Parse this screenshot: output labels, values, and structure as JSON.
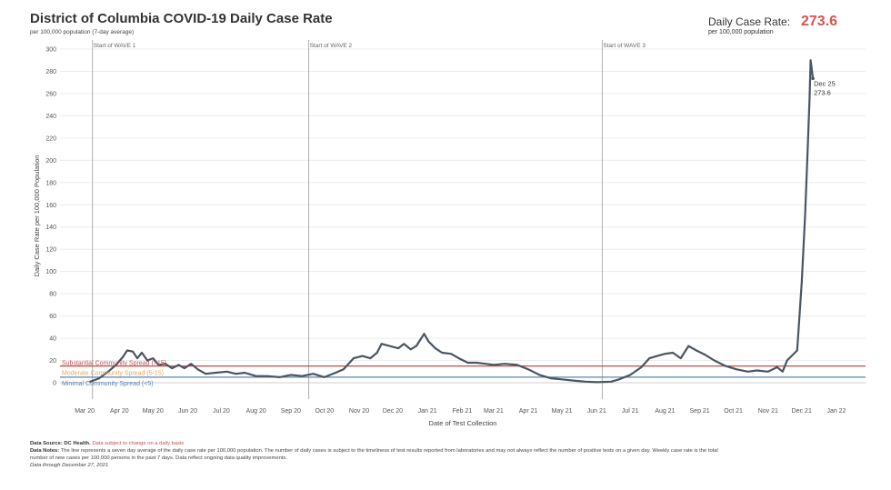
{
  "header": {
    "title": "District of Columbia COVID-19 Daily Case Rate",
    "subtitle": "per 100,000 population (7-day average)",
    "kpi_label": "Daily Case Rate:",
    "kpi_sub": "per 100,000 population",
    "kpi_value": "273.6",
    "kpi_color": "#d9534f"
  },
  "footer": {
    "source_label": "Data Source: DC Health.",
    "source_note": "Data subject to change on a daily basis",
    "notes_label": "Data Notes:",
    "notes_line1": "The line represents a seven day average of the daily case rate per 100,000 population. The number of daily cases is subject to the timeliness of test results reported from laboratories and may not always reflect the number of positive tests on a given day. Weekly case rate is the total",
    "notes_line2": "number of new cases per 100,000 persons in the past 7 days. Data reflect ongoing data quality improvements.",
    "through": "Data through December 27, 2021"
  },
  "chart_data": {
    "type": "line",
    "xlabel": "Date of Test Collection",
    "ylabel": "Daily Case Rate per 100,000 Population",
    "ylim": [
      0,
      300
    ],
    "yticks": [
      0,
      20,
      40,
      60,
      80,
      100,
      120,
      140,
      160,
      180,
      200,
      220,
      240,
      260,
      280,
      300
    ],
    "xlim": [
      "2020-02-22",
      "2022-02-10"
    ],
    "xticks": [
      {
        "date": "2020-03-15",
        "label": "Mar 20"
      },
      {
        "date": "2020-04-15",
        "label": "Apr 20"
      },
      {
        "date": "2020-05-15",
        "label": "May 20"
      },
      {
        "date": "2020-06-15",
        "label": "Jun 20"
      },
      {
        "date": "2020-07-15",
        "label": "Jul 20"
      },
      {
        "date": "2020-08-15",
        "label": "Aug 20"
      },
      {
        "date": "2020-09-15",
        "label": "Sep 20"
      },
      {
        "date": "2020-10-15",
        "label": "Oct 20"
      },
      {
        "date": "2020-11-15",
        "label": "Nov 20"
      },
      {
        "date": "2020-12-15",
        "label": "Dec 20"
      },
      {
        "date": "2021-01-15",
        "label": "Jan 21"
      },
      {
        "date": "2021-02-15",
        "label": "Feb 21"
      },
      {
        "date": "2021-03-15",
        "label": "Mar 21"
      },
      {
        "date": "2021-04-15",
        "label": "Apr 21"
      },
      {
        "date": "2021-05-15",
        "label": "May 21"
      },
      {
        "date": "2021-06-15",
        "label": "Jun 21"
      },
      {
        "date": "2021-07-15",
        "label": "Jul 21"
      },
      {
        "date": "2021-08-15",
        "label": "Aug 21"
      },
      {
        "date": "2021-09-15",
        "label": "Sep 21"
      },
      {
        "date": "2021-10-15",
        "label": "Oct 21"
      },
      {
        "date": "2021-11-15",
        "label": "Nov 21"
      },
      {
        "date": "2021-12-15",
        "label": "Dec 21"
      },
      {
        "date": "2022-01-15",
        "label": "Jan 22"
      }
    ],
    "waves": [
      {
        "date": "2020-03-22",
        "label": "Start of WAVE 1"
      },
      {
        "date": "2020-10-01",
        "label": "Start of WAVE 2"
      },
      {
        "date": "2021-06-20",
        "label": "Start of WAVE 3"
      }
    ],
    "thresholds": [
      {
        "value": 15,
        "label": "Substantial Community Spread (>15)",
        "color": "#c0504d"
      },
      {
        "value": 5,
        "label": "Moderate Community Spread (5-15)",
        "color": "#e3a85c"
      },
      {
        "value": 5,
        "label": "Minimal Community Spread (<5)",
        "color": "#5b84b1"
      }
    ],
    "annotation": {
      "date": "2021-12-25",
      "value": 273.6,
      "label_date": "Dec 25",
      "label_value": "273.6"
    },
    "line_color": "#4a5563",
    "grid": true,
    "series": [
      {
        "points": [
          [
            "2020-03-20",
            1
          ],
          [
            "2020-03-28",
            4
          ],
          [
            "2020-04-05",
            10
          ],
          [
            "2020-04-12",
            16
          ],
          [
            "2020-04-18",
            23
          ],
          [
            "2020-04-22",
            29
          ],
          [
            "2020-04-27",
            28
          ],
          [
            "2020-05-01",
            22
          ],
          [
            "2020-05-05",
            27
          ],
          [
            "2020-05-10",
            20
          ],
          [
            "2020-05-15",
            22
          ],
          [
            "2020-05-20",
            16
          ],
          [
            "2020-05-26",
            17
          ],
          [
            "2020-06-01",
            13
          ],
          [
            "2020-06-07",
            16
          ],
          [
            "2020-06-12",
            13
          ],
          [
            "2020-06-18",
            17
          ],
          [
            "2020-06-24",
            12
          ],
          [
            "2020-07-01",
            8
          ],
          [
            "2020-07-10",
            9
          ],
          [
            "2020-07-20",
            10
          ],
          [
            "2020-07-28",
            8
          ],
          [
            "2020-08-05",
            9
          ],
          [
            "2020-08-15",
            6
          ],
          [
            "2020-08-25",
            6
          ],
          [
            "2020-09-05",
            5
          ],
          [
            "2020-09-15",
            7
          ],
          [
            "2020-09-25",
            6
          ],
          [
            "2020-10-05",
            8
          ],
          [
            "2020-10-15",
            5
          ],
          [
            "2020-10-25",
            9
          ],
          [
            "2020-11-01",
            12
          ],
          [
            "2020-11-10",
            22
          ],
          [
            "2020-11-18",
            24
          ],
          [
            "2020-11-25",
            22
          ],
          [
            "2020-12-01",
            27
          ],
          [
            "2020-12-05",
            35
          ],
          [
            "2020-12-12",
            33
          ],
          [
            "2020-12-20",
            31
          ],
          [
            "2020-12-25",
            35
          ],
          [
            "2020-12-31",
            30
          ],
          [
            "2021-01-05",
            33
          ],
          [
            "2021-01-12",
            44
          ],
          [
            "2021-01-16",
            37
          ],
          [
            "2021-01-22",
            31
          ],
          [
            "2021-01-28",
            27
          ],
          [
            "2021-02-05",
            26
          ],
          [
            "2021-02-12",
            22
          ],
          [
            "2021-02-20",
            18
          ],
          [
            "2021-02-28",
            18
          ],
          [
            "2021-03-08",
            17
          ],
          [
            "2021-03-15",
            16
          ],
          [
            "2021-03-25",
            17
          ],
          [
            "2021-04-05",
            16
          ],
          [
            "2021-04-15",
            12
          ],
          [
            "2021-04-25",
            7
          ],
          [
            "2021-05-05",
            4
          ],
          [
            "2021-05-15",
            3
          ],
          [
            "2021-05-25",
            2
          ],
          [
            "2021-06-05",
            1
          ],
          [
            "2021-06-15",
            0.5
          ],
          [
            "2021-06-28",
            1
          ],
          [
            "2021-07-05",
            3
          ],
          [
            "2021-07-15",
            7
          ],
          [
            "2021-07-25",
            14
          ],
          [
            "2021-08-01",
            22
          ],
          [
            "2021-08-08",
            24
          ],
          [
            "2021-08-15",
            26
          ],
          [
            "2021-08-22",
            27
          ],
          [
            "2021-08-29",
            22
          ],
          [
            "2021-09-05",
            33
          ],
          [
            "2021-09-12",
            29
          ],
          [
            "2021-09-20",
            25
          ],
          [
            "2021-09-28",
            20
          ],
          [
            "2021-10-08",
            15
          ],
          [
            "2021-10-18",
            12
          ],
          [
            "2021-10-28",
            10
          ],
          [
            "2021-11-05",
            11
          ],
          [
            "2021-11-15",
            10
          ],
          [
            "2021-11-23",
            14
          ],
          [
            "2021-11-28",
            10
          ],
          [
            "2021-12-02",
            20
          ],
          [
            "2021-12-07",
            25
          ],
          [
            "2021-12-11",
            29
          ],
          [
            "2021-12-15",
            90
          ],
          [
            "2021-12-18",
            150
          ],
          [
            "2021-12-20",
            200
          ],
          [
            "2021-12-22",
            255
          ],
          [
            "2021-12-23",
            290
          ],
          [
            "2021-12-25",
            273.6
          ]
        ]
      }
    ]
  }
}
